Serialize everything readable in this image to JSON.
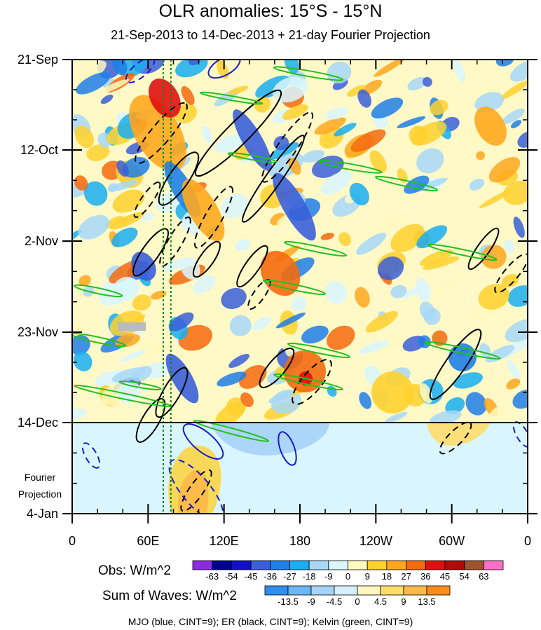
{
  "title": "OLR anomalies: 15°S - 15°N",
  "subtitle": "21-Sep-2013 to 14-Dec-2013 + 21-day Fourier Projection",
  "chart_data": {
    "type": "heatmap",
    "title": "OLR anomalies: 15°S - 15°N",
    "subtitle": "21-Sep-2013 to 14-Dec-2013 + 21-day Fourier Projection",
    "x_axis": {
      "ticks": [
        "0",
        "60E",
        "120E",
        "180",
        "120W",
        "60W",
        "0"
      ],
      "range_deg_east": [
        0,
        360
      ]
    },
    "y_axis": {
      "ticks": [
        "21-Sep",
        "12-Oct",
        "2-Nov",
        "23-Nov",
        "14-Dec",
        "4-Jan"
      ],
      "range": [
        "21-Sep-2013",
        "4-Jan-2014"
      ],
      "observation_end": "14-Dec-2013",
      "projection_label": [
        "Fourier",
        "Projection"
      ]
    },
    "obs_colorbar": {
      "label": "Obs: W/m^2",
      "levels": [
        "-63",
        "-54",
        "-45",
        "-36",
        "-27",
        "-18",
        "-9",
        "0",
        "9",
        "18",
        "27",
        "36",
        "45",
        "54",
        "63"
      ],
      "colors": [
        "#8a2be2",
        "#000090",
        "#1010c8",
        "#3a5fd8",
        "#1f7fe8",
        "#19aef0",
        "#a8d8f8",
        "#d9f6ff",
        "#fff9c0",
        "#ffd12e",
        "#ffa81e",
        "#f46a0e",
        "#e01010",
        "#b00a0a",
        "#a0522d",
        "#ff6ec7"
      ]
    },
    "waves_colorbar": {
      "label": "Sum of Waves: W/m^2",
      "levels": [
        "-13.5",
        "-9",
        "-4.5",
        "0",
        "4.5",
        "9",
        "13.5"
      ],
      "colors": [
        "#2f8ef0",
        "#6cb6f5",
        "#a6d3f8",
        "#d7f0fb",
        "#fff5c0",
        "#ffdd6a",
        "#ffb94a",
        "#ff8c1a"
      ]
    },
    "footer": "MJO (blue, CINT=9); ER (black, CINT=9); Kelvin (green, CINT=9)",
    "series": [
      {
        "name": "MJO",
        "color": "#1a1acd",
        "cint": 9
      },
      {
        "name": "ER",
        "color": "#000000",
        "cint": 9
      },
      {
        "name": "Kelvin",
        "color": "#22c022",
        "cint": 9
      }
    ],
    "reference_lines_lon_deg_east": [
      72,
      78
    ]
  }
}
